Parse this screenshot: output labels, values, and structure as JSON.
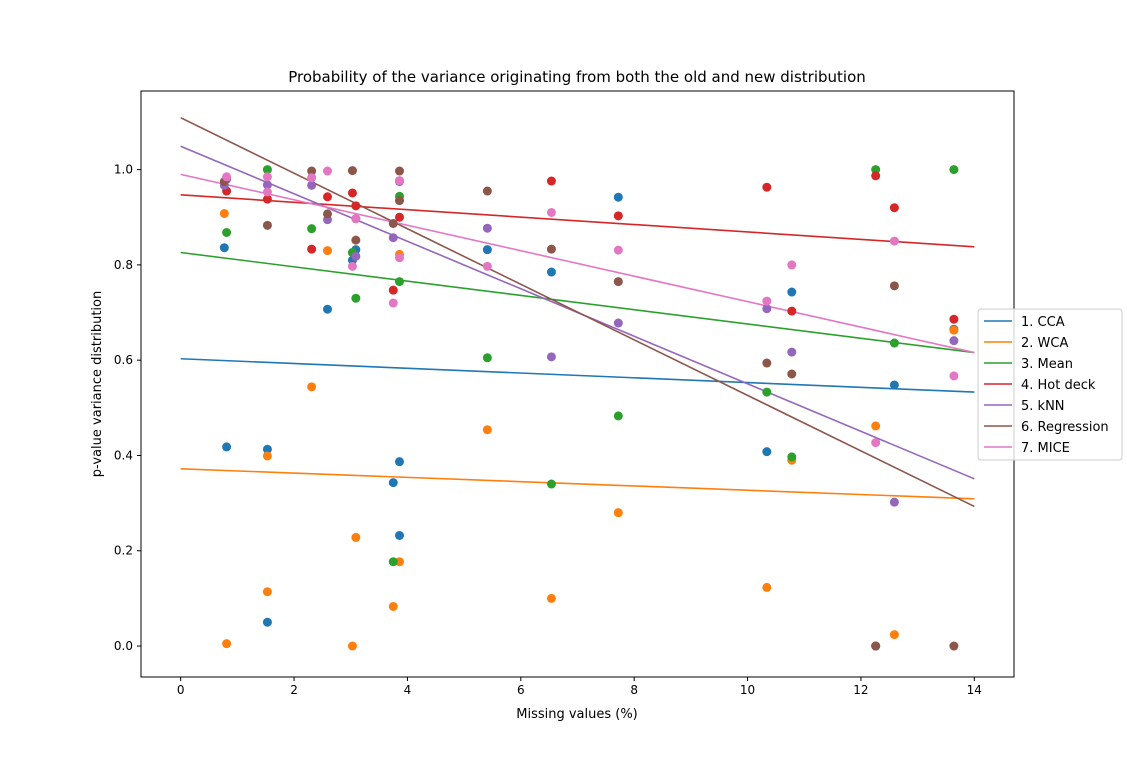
{
  "chart_data": {
    "type": "scatter",
    "title": "Probability of the variance originating from both the old and new distribution",
    "xlabel": "Missing values (%)",
    "ylabel": "p-value variance distribution",
    "xlim": [
      -0.7,
      14.7
    ],
    "ylim": [
      -0.065,
      1.165
    ],
    "xticks": [
      0,
      2,
      4,
      6,
      8,
      10,
      12,
      14
    ],
    "yticks": [
      0.0,
      0.2,
      0.4,
      0.6,
      0.8,
      1.0
    ],
    "grid": false,
    "legend_position": "center-right",
    "series": [
      {
        "name": "1. CCA",
        "color": "#1f77b4",
        "points": [
          [
            0.77,
            0.836
          ],
          [
            0.81,
            0.418
          ],
          [
            1.53,
            0.413
          ],
          [
            1.53,
            0.05
          ],
          [
            2.59,
            0.707
          ],
          [
            3.03,
            0.81
          ],
          [
            3.09,
            0.832
          ],
          [
            3.75,
            0.343
          ],
          [
            3.86,
            0.387
          ],
          [
            3.86,
            0.232
          ],
          [
            5.41,
            0.832
          ],
          [
            6.54,
            0.785
          ],
          [
            7.72,
            0.942
          ],
          [
            10.34,
            0.408
          ],
          [
            10.78,
            0.743
          ],
          [
            12.26,
            0.0
          ],
          [
            12.59,
            0.548
          ],
          [
            13.64,
            0.665
          ]
        ],
        "fit": [
          [
            0,
            0.603
          ],
          [
            14,
            0.533
          ]
        ]
      },
      {
        "name": "2. WCA",
        "color": "#ff7f0e",
        "points": [
          [
            0.77,
            0.908
          ],
          [
            0.81,
            0.005
          ],
          [
            1.53,
            0.399
          ],
          [
            1.53,
            0.114
          ],
          [
            2.31,
            0.544
          ],
          [
            2.59,
            0.83
          ],
          [
            3.03,
            0.0
          ],
          [
            3.09,
            0.228
          ],
          [
            3.75,
            0.083
          ],
          [
            3.86,
            0.822
          ],
          [
            3.86,
            0.177
          ],
          [
            5.41,
            0.454
          ],
          [
            6.54,
            0.1
          ],
          [
            7.72,
            0.28
          ],
          [
            10.34,
            0.123
          ],
          [
            10.78,
            0.39
          ],
          [
            12.26,
            0.462
          ],
          [
            12.59,
            0.024
          ],
          [
            13.64,
            0.663
          ]
        ],
        "fit": [
          [
            0,
            0.372
          ],
          [
            14,
            0.309
          ]
        ]
      },
      {
        "name": "3. Mean",
        "color": "#2ca02c",
        "points": [
          [
            0.81,
            0.868
          ],
          [
            1.53,
            1.0
          ],
          [
            2.31,
            0.876
          ],
          [
            3.03,
            0.826
          ],
          [
            3.09,
            0.73
          ],
          [
            3.75,
            0.177
          ],
          [
            3.86,
            0.765
          ],
          [
            3.86,
            0.944
          ],
          [
            5.41,
            0.605
          ],
          [
            6.54,
            0.34
          ],
          [
            7.72,
            0.483
          ],
          [
            10.34,
            0.533
          ],
          [
            10.78,
            0.397
          ],
          [
            12.26,
            1.0
          ],
          [
            12.59,
            0.636
          ],
          [
            13.64,
            1.0
          ]
        ],
        "fit": [
          [
            0,
            0.826
          ],
          [
            14,
            0.616
          ]
        ]
      },
      {
        "name": "4. Hot deck",
        "color": "#d62728",
        "points": [
          [
            0.81,
            0.955
          ],
          [
            1.53,
            0.938
          ],
          [
            2.31,
            0.833
          ],
          [
            2.59,
            0.943
          ],
          [
            3.03,
            0.951
          ],
          [
            3.09,
            0.924
          ],
          [
            3.75,
            0.747
          ],
          [
            3.86,
            0.9
          ],
          [
            6.54,
            0.976
          ],
          [
            7.72,
            0.903
          ],
          [
            10.34,
            0.963
          ],
          [
            10.78,
            0.703
          ],
          [
            12.26,
            0.987
          ],
          [
            12.59,
            0.92
          ],
          [
            13.64,
            0.686
          ]
        ],
        "fit": [
          [
            0,
            0.947
          ],
          [
            14,
            0.838
          ]
        ]
      },
      {
        "name": "5. kNN",
        "color": "#9467bd",
        "points": [
          [
            0.77,
            0.967
          ],
          [
            0.81,
            0.98
          ],
          [
            1.53,
            0.968
          ],
          [
            2.31,
            0.967
          ],
          [
            2.59,
            0.895
          ],
          [
            3.09,
            0.818
          ],
          [
            3.09,
            0.897
          ],
          [
            3.75,
            0.857
          ],
          [
            3.86,
            0.975
          ],
          [
            5.41,
            0.877
          ],
          [
            6.54,
            0.607
          ],
          [
            7.72,
            0.678
          ],
          [
            10.34,
            0.708
          ],
          [
            10.78,
            0.617
          ],
          [
            12.26,
            0.0
          ],
          [
            12.59,
            0.302
          ],
          [
            13.64,
            0.641
          ]
        ],
        "fit": [
          [
            0,
            1.049
          ],
          [
            14,
            0.351
          ]
        ]
      },
      {
        "name": "6. Regression",
        "color": "#8c564b",
        "points": [
          [
            0.77,
            0.975
          ],
          [
            1.53,
            0.883
          ],
          [
            2.31,
            0.997
          ],
          [
            2.59,
            0.907
          ],
          [
            3.03,
            0.998
          ],
          [
            3.09,
            0.852
          ],
          [
            3.75,
            0.887
          ],
          [
            3.86,
            0.935
          ],
          [
            3.86,
            0.997
          ],
          [
            5.41,
            0.955
          ],
          [
            6.54,
            0.833
          ],
          [
            7.72,
            0.765
          ],
          [
            10.34,
            0.594
          ],
          [
            10.78,
            0.571
          ],
          [
            12.26,
            0.0
          ],
          [
            12.59,
            0.756
          ],
          [
            13.64,
            0.0
          ]
        ],
        "fit": [
          [
            0,
            1.109
          ],
          [
            14,
            0.293
          ]
        ]
      },
      {
        "name": "7. MICE",
        "color": "#e377c2",
        "points": [
          [
            0.81,
            0.985
          ],
          [
            1.53,
            0.985
          ],
          [
            1.53,
            0.953
          ],
          [
            2.31,
            0.983
          ],
          [
            2.59,
            0.997
          ],
          [
            3.03,
            0.797
          ],
          [
            3.09,
            0.897
          ],
          [
            3.75,
            0.72
          ],
          [
            3.86,
            0.815
          ],
          [
            3.86,
            0.977
          ],
          [
            5.41,
            0.797
          ],
          [
            6.54,
            0.91
          ],
          [
            7.72,
            0.831
          ],
          [
            10.34,
            0.724
          ],
          [
            10.78,
            0.8
          ],
          [
            12.26,
            0.427
          ],
          [
            12.59,
            0.85
          ],
          [
            13.64,
            0.567
          ]
        ],
        "fit": [
          [
            0,
            0.99
          ],
          [
            14,
            0.616
          ]
        ]
      }
    ]
  }
}
